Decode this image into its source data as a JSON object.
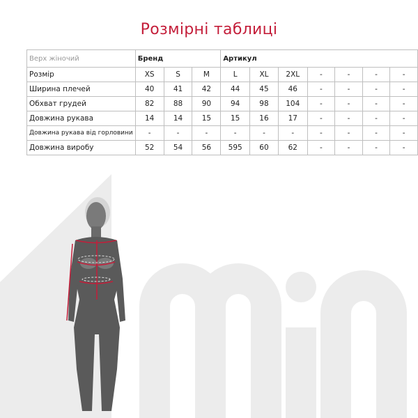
{
  "title": "Розмірні таблиці",
  "table": {
    "header": {
      "category": "Верх жіночий",
      "brand_label": "Бренд",
      "article_label": "Артикул"
    },
    "rows": [
      {
        "label": "Розмір",
        "values": [
          "XS",
          "S",
          "M",
          "L",
          "XL",
          "2XL",
          "-",
          "-",
          "-",
          "-"
        ]
      },
      {
        "label": "Ширина плечей",
        "values": [
          "40",
          "41",
          "42",
          "44",
          "45",
          "46",
          "-",
          "-",
          "-",
          "-"
        ]
      },
      {
        "label": "Обхват грудей",
        "values": [
          "82",
          "88",
          "90",
          "94",
          "98",
          "104",
          "-",
          "-",
          "-",
          "-"
        ]
      },
      {
        "label": "Довжина рукава",
        "values": [
          "14",
          "14",
          "15",
          "15",
          "16",
          "17",
          "-",
          "-",
          "-",
          "-"
        ]
      },
      {
        "label": "Довжина рукава від горловини",
        "values": [
          "-",
          "-",
          "-",
          "-",
          "-",
          "-",
          "-",
          "-",
          "-",
          "-"
        ]
      },
      {
        "label": "Довжина виробу",
        "values": [
          "52",
          "54",
          "56",
          "595",
          "60",
          "62",
          "-",
          "-",
          "-",
          "-"
        ]
      }
    ]
  },
  "logo_text": "min",
  "colors": {
    "accent": "#c41e3a",
    "silhouette": "#5a5a5a",
    "logo_bg": "#ececec"
  }
}
